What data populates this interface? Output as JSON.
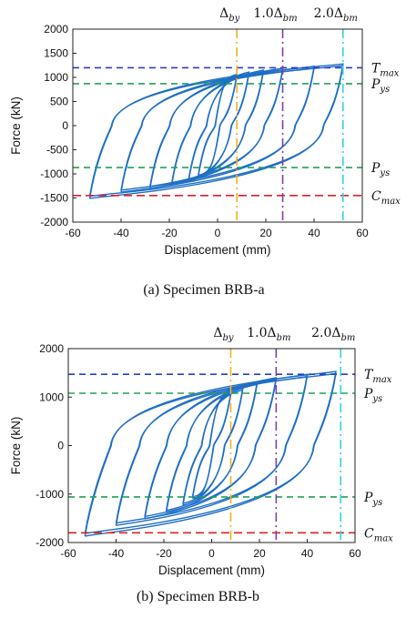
{
  "chart_data": [
    {
      "type": "line",
      "caption": "(a) Specimen BRB-a",
      "xlabel": "Displacement (mm)",
      "ylabel": "Force (kN)",
      "xlim": [
        -60,
        60
      ],
      "ylim": [
        -2000,
        2000
      ],
      "xticks": [
        "-60",
        "-40",
        "-20",
        "0",
        "20",
        "40",
        "60"
      ],
      "yticks": [
        "2000",
        "1500",
        "1000",
        "500",
        "0",
        "-500",
        "-1000",
        "-1500",
        "-2000"
      ],
      "grid": false,
      "hysteresis_color": "#1f6fc5",
      "envelope": {
        "positive": {
          "x": [
            8,
            13,
            19,
            27,
            40,
            52
          ],
          "y": [
            1060,
            1110,
            1150,
            1190,
            1230,
            1280
          ]
        },
        "negative": {
          "x": [
            -8,
            -12,
            -19,
            -28,
            -40,
            -53
          ],
          "y": [
            -1060,
            -1150,
            -1230,
            -1300,
            -1380,
            -1510
          ]
        }
      },
      "ref_lines": [
        {
          "label_main": "T",
          "label_sub": "max",
          "orientation": "h",
          "value": 1200,
          "color": "#2a3dc8",
          "dash": "7,5"
        },
        {
          "label_main": "P",
          "label_sub": "ys",
          "orientation": "h",
          "value": 870,
          "color": "#22a055",
          "dash": "7,5"
        },
        {
          "label_main": "P",
          "label_sub": "ys",
          "orientation": "h",
          "value": -870,
          "color": "#22a055",
          "dash": "7,5"
        },
        {
          "label_main": "C",
          "label_sub": "max",
          "orientation": "h",
          "value": -1450,
          "color": "#e02020",
          "dash": "9,5"
        },
        {
          "label_main": "Δ",
          "label_sub": "by",
          "orientation": "v",
          "value": 8,
          "color": "#f2b01e",
          "dash": "10,4,2,4"
        },
        {
          "label_main": "1.0Δ",
          "label_sub": "bm",
          "orientation": "v",
          "value": 27,
          "color": "#7b3fa8",
          "dash": "10,4,2,4"
        },
        {
          "label_main": "2.0Δ",
          "label_sub": "bm",
          "orientation": "v",
          "value": 52,
          "color": "#2fd6dc",
          "dash": "10,4,2,4"
        }
      ]
    },
    {
      "type": "line",
      "caption": "(b) Specimen BRB-b",
      "xlabel": "Displacement (mm)",
      "ylabel": "Force (kN)",
      "xlim": [
        -60,
        60
      ],
      "ylim": [
        -2000,
        2000
      ],
      "xticks": [
        "-60",
        "-40",
        "-20",
        "0",
        "20",
        "40",
        "60"
      ],
      "yticks": [
        "2000",
        "1000",
        "0",
        "-1000",
        "-2000"
      ],
      "grid": false,
      "hysteresis_color": "#1f6fc5",
      "envelope": {
        "positive": {
          "x": [
            8,
            13,
            19,
            27,
            40,
            52
          ],
          "y": [
            1090,
            1180,
            1300,
            1400,
            1470,
            1530
          ]
        },
        "negative": {
          "x": [
            -8,
            -12,
            -19,
            -28,
            -40,
            -53
          ],
          "y": [
            -1090,
            -1230,
            -1380,
            -1510,
            -1650,
            -1870
          ]
        }
      },
      "ref_lines": [
        {
          "label_main": "T",
          "label_sub": "max",
          "orientation": "h",
          "value": 1470,
          "color": "#2a3dc8",
          "dash": "7,5"
        },
        {
          "label_main": "P",
          "label_sub": "ys",
          "orientation": "h",
          "value": 1080,
          "color": "#22a055",
          "dash": "7,5"
        },
        {
          "label_main": "P",
          "label_sub": "ys",
          "orientation": "h",
          "value": -1060,
          "color": "#22a055",
          "dash": "7,5"
        },
        {
          "label_main": "C",
          "label_sub": "max",
          "orientation": "h",
          "value": -1800,
          "color": "#e02020",
          "dash": "9,5"
        },
        {
          "label_main": "Δ",
          "label_sub": "by",
          "orientation": "v",
          "value": 8,
          "color": "#f2b01e",
          "dash": "10,4,2,4"
        },
        {
          "label_main": "1.0Δ",
          "label_sub": "bm",
          "orientation": "v",
          "value": 27,
          "color": "#7b3fa8",
          "dash": "10,4,2,4"
        },
        {
          "label_main": "2.0Δ",
          "label_sub": "bm",
          "orientation": "v",
          "value": 54,
          "color": "#2fd6dc",
          "dash": "10,4,2,4"
        }
      ]
    }
  ]
}
